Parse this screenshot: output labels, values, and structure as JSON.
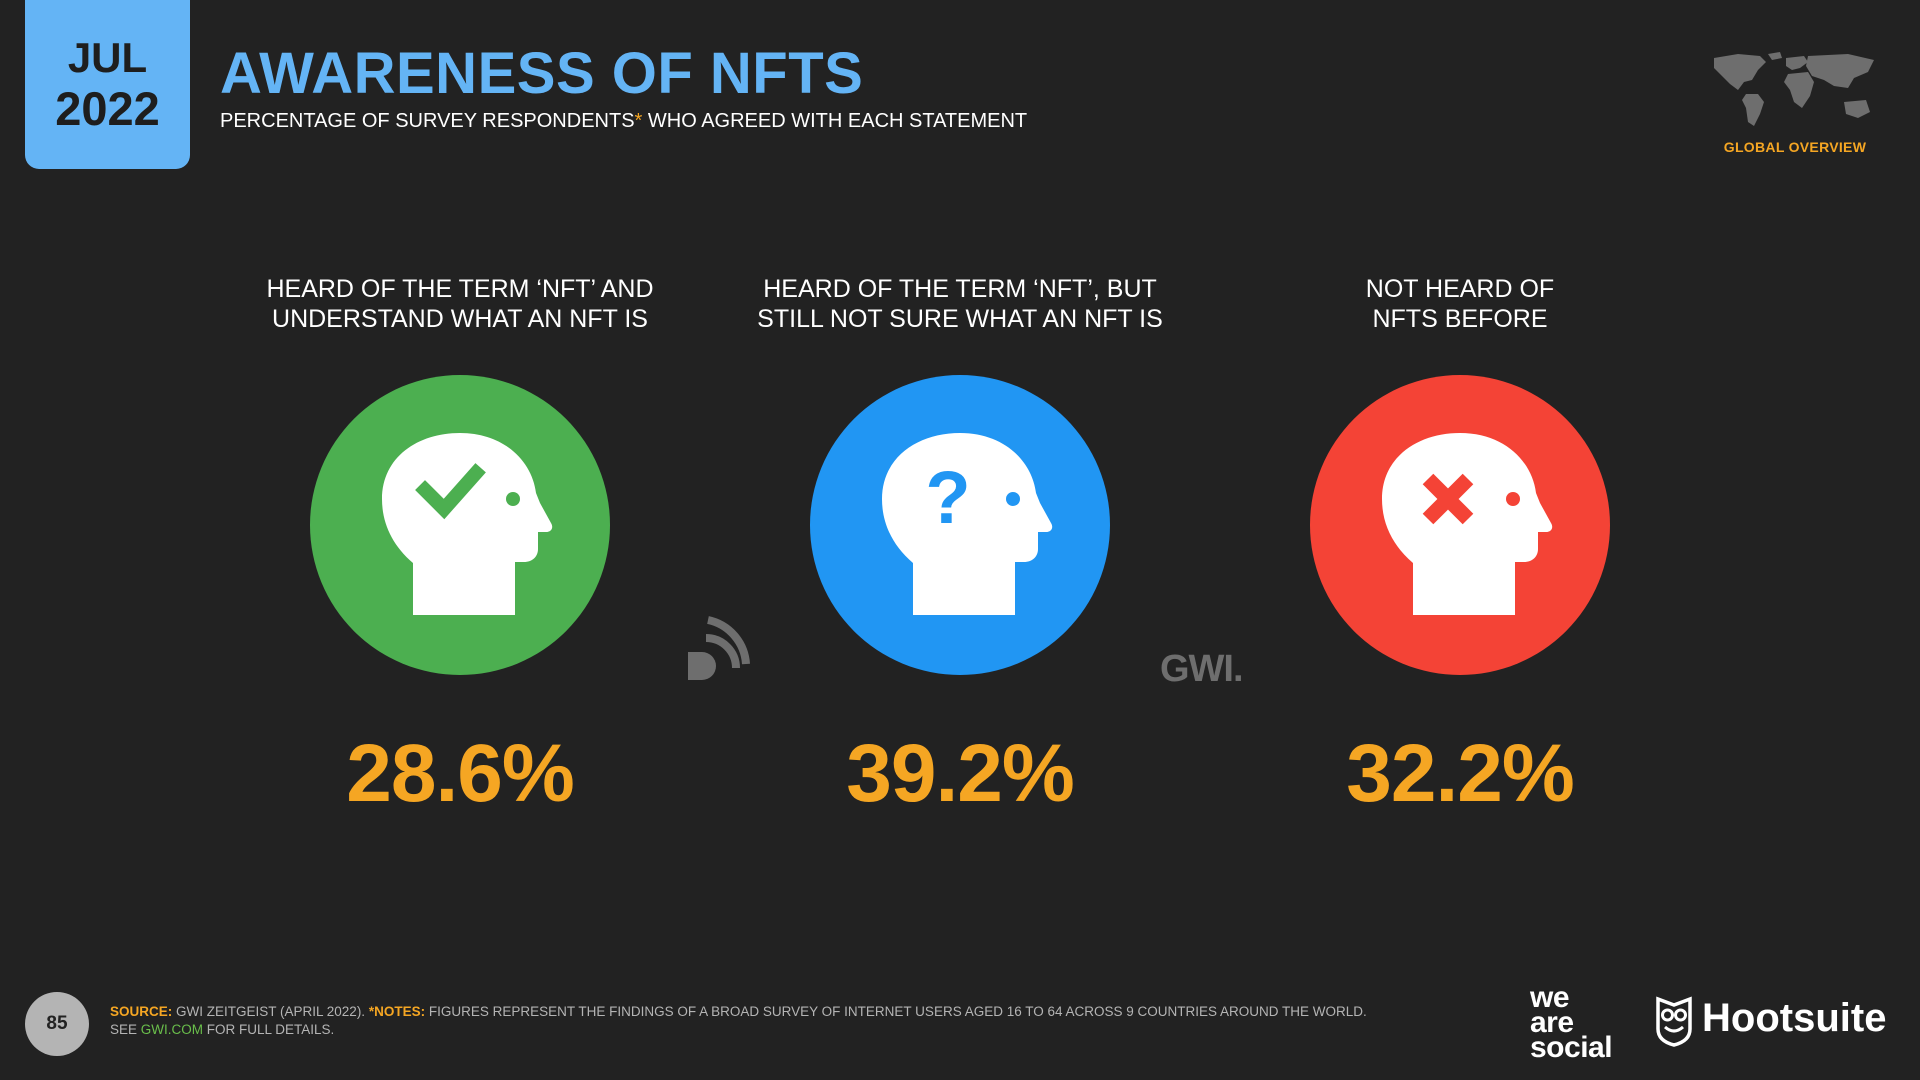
{
  "header": {
    "month": "JUL",
    "year": "2022",
    "title": "AWARENESS OF NFTS",
    "subtitle_before": "PERCENTAGE OF SURVEY RESPONDENTS",
    "subtitle_asterisk": "*",
    "subtitle_after": " WHO AGREED WITH EACH STATEMENT",
    "region": "GLOBAL OVERVIEW"
  },
  "chart_data": {
    "type": "table",
    "title": "AWARENESS OF NFTS",
    "subtitle": "PERCENTAGE OF SURVEY RESPONDENTS* WHO AGREED WITH EACH STATEMENT",
    "categories": [
      "HEARD OF THE TERM ‘NFT’ AND\nUNDERSTAND WHAT AN NFT IS",
      "HEARD OF THE TERM ‘NFT’, BUT\nSTILL NOT SURE WHAT AN NFT IS",
      "NOT HEARD OF\nNFTS BEFORE"
    ],
    "values": [
      28.6,
      39.2,
      32.2
    ],
    "value_labels": [
      "28.6%",
      "39.2%",
      "32.2%"
    ],
    "icons": [
      "head-checkmark-icon",
      "head-question-icon",
      "head-cross-icon"
    ],
    "colors": [
      "#4caf50",
      "#2196f3",
      "#f44336"
    ],
    "value_color": "#f5a623"
  },
  "logos": {
    "gwi": "GWI."
  },
  "footer": {
    "page_number": "85",
    "source_key": "SOURCE:",
    "source_text": " GWI ZEITGEIST (APRIL 2022). ",
    "notes_key": "*NOTES:",
    "notes_text": " FIGURES REPRESENT THE FINDINGS OF A BROAD SURVEY OF INTERNET USERS AGED 16 TO 64 ACROSS 9 COUNTRIES AROUND THE WORLD.",
    "see_text": "SEE ",
    "see_link": "GWI.COM",
    "see_after": " FOR FULL DETAILS.",
    "brand_line1": "we",
    "brand_line2": "are",
    "brand_line3": "social",
    "brand_hootsuite": "Hootsuite"
  }
}
